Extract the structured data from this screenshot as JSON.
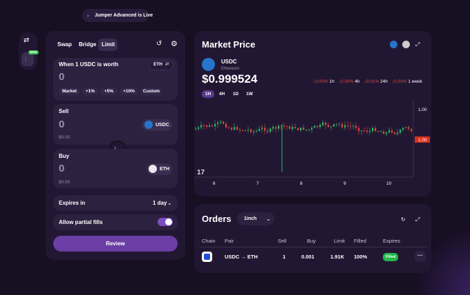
{
  "banner": "Jumper Advanced is Live",
  "sidebar": {
    "badge": "NEW"
  },
  "swap_panel": {
    "tabs": [
      "Swap",
      "Bridge",
      "Limit"
    ],
    "rate": {
      "label": "When 1 USDC is worth",
      "token": "ETH",
      "value": "0",
      "presets": [
        "Market",
        "+1%",
        "+5%",
        "+10%",
        "Custom"
      ]
    },
    "sell": {
      "label": "Sell",
      "amount": "0",
      "usd": "$0.00",
      "token": "USDC"
    },
    "buy": {
      "label": "Buy",
      "amount": "0",
      "usd": "$0.00",
      "token": "ETH"
    },
    "expires": {
      "label": "Expires in",
      "value": "1 day"
    },
    "partial_fills": {
      "label": "Allow partial fills"
    },
    "review": "Review"
  },
  "market": {
    "title": "Market Price",
    "token": "USDC",
    "network": "Ethereum",
    "price": "$0.999524",
    "intervals": [
      "1H",
      "4H",
      "1D",
      "1W"
    ],
    "changes": [
      {
        "value": "↓0.00%",
        "period": "1h"
      },
      {
        "value": "↓0.00%",
        "period": "4h"
      },
      {
        "value": "↓0.01%",
        "period": "24h"
      },
      {
        "value": "↓0.01%",
        "period": "1 week"
      }
    ],
    "axis_prices": [
      "1.00",
      "1.00"
    ],
    "x_labels": [
      "6",
      "7",
      "8",
      "9",
      "10"
    ]
  },
  "orders": {
    "title": "Orders",
    "source": "1inch",
    "columns": [
      "Chain",
      "Pair",
      "Sell",
      "Buy",
      "Limit",
      "Filled",
      "Expires"
    ],
    "rows": [
      [
        "USDC → ETH",
        "1",
        "0.001",
        "1.91K",
        "100%",
        "Filled"
      ]
    ]
  }
}
